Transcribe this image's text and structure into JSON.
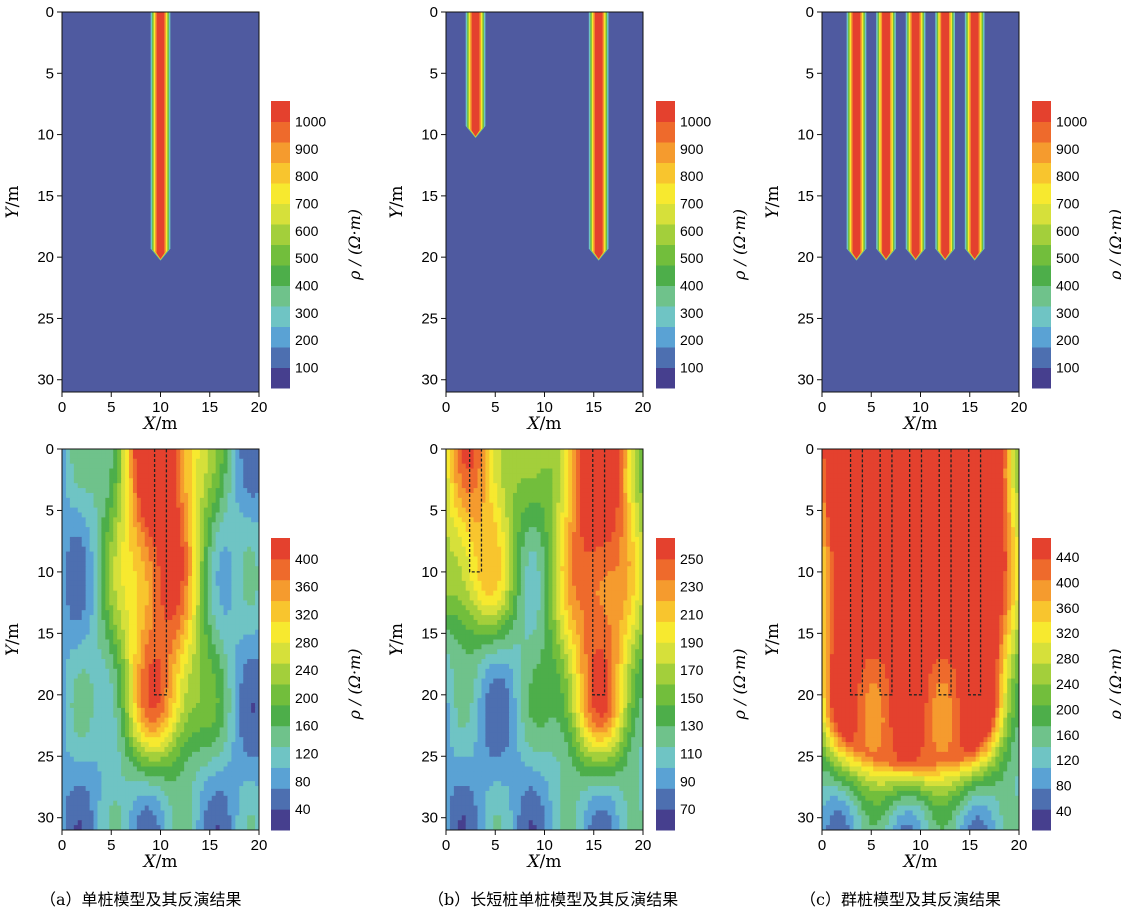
{
  "chart_data": [
    {
      "id": "a-model",
      "type": "heatmap",
      "panel": "a",
      "subtitle": "model",
      "xlabel": "X/m",
      "ylabel": "Y/m",
      "xlim": [
        0,
        20
      ],
      "ylim": [
        31,
        0
      ],
      "xticks": [
        "0",
        "5",
        "10",
        "15",
        "20"
      ],
      "yticks": [
        "0",
        "5",
        "10",
        "15",
        "20",
        "25",
        "30"
      ],
      "colorbar": {
        "label": "ρ / (Ω·m)",
        "ticks": [
          "100",
          "200",
          "300",
          "400",
          "500",
          "600",
          "700",
          "800",
          "900",
          "1000"
        ]
      },
      "background_resistivity": 50,
      "pile_resistivity": 1050,
      "piles": [
        {
          "x": 10,
          "depth": 20
        }
      ]
    },
    {
      "id": "b-model",
      "type": "heatmap",
      "panel": "b",
      "subtitle": "model",
      "xlabel": "X/m",
      "ylabel": "Y/m",
      "xlim": [
        0,
        20
      ],
      "ylim": [
        31,
        0
      ],
      "xticks": [
        "0",
        "5",
        "10",
        "15",
        "20"
      ],
      "yticks": [
        "0",
        "5",
        "10",
        "15",
        "20",
        "25",
        "30"
      ],
      "colorbar": {
        "label": "ρ / (Ω·m)",
        "ticks": [
          "100",
          "200",
          "300",
          "400",
          "500",
          "600",
          "700",
          "800",
          "900",
          "1000"
        ]
      },
      "background_resistivity": 50,
      "pile_resistivity": 1050,
      "piles": [
        {
          "x": 3,
          "depth": 10
        },
        {
          "x": 15.5,
          "depth": 20
        }
      ]
    },
    {
      "id": "c-model",
      "type": "heatmap",
      "panel": "c",
      "subtitle": "model",
      "xlabel": "X/m",
      "ylabel": "Y/m",
      "xlim": [
        0,
        20
      ],
      "ylim": [
        31,
        0
      ],
      "xticks": [
        "0",
        "5",
        "10",
        "15",
        "20"
      ],
      "yticks": [
        "0",
        "5",
        "10",
        "15",
        "20",
        "25",
        "30"
      ],
      "colorbar": {
        "label": "ρ / (Ω·m)",
        "ticks": [
          "100",
          "200",
          "300",
          "400",
          "500",
          "600",
          "700",
          "800",
          "900",
          "1000"
        ]
      },
      "background_resistivity": 50,
      "pile_resistivity": 1050,
      "piles": [
        {
          "x": 3.5,
          "depth": 20
        },
        {
          "x": 6.5,
          "depth": 20
        },
        {
          "x": 9.5,
          "depth": 20
        },
        {
          "x": 12.5,
          "depth": 20
        },
        {
          "x": 15.5,
          "depth": 20
        }
      ]
    },
    {
      "id": "a-inv",
      "type": "heatmap",
      "panel": "a",
      "subtitle": "inversion",
      "xlabel": "X/m",
      "ylabel": "Y/m",
      "xlim": [
        0,
        20
      ],
      "ylim": [
        31,
        0
      ],
      "xticks": [
        "0",
        "5",
        "10",
        "15",
        "20"
      ],
      "yticks": [
        "0",
        "5",
        "10",
        "15",
        "20",
        "25",
        "30"
      ],
      "colorbar": {
        "label": "ρ / (Ω·m)",
        "ticks": [
          "40",
          "80",
          "120",
          "160",
          "200",
          "240",
          "280",
          "320",
          "360",
          "400"
        ]
      },
      "vrange": [
        20,
        420
      ],
      "pile_outlines": [
        {
          "x": 10,
          "depth": 20
        }
      ]
    },
    {
      "id": "b-inv",
      "type": "heatmap",
      "panel": "b",
      "subtitle": "inversion",
      "xlabel": "X/m",
      "ylabel": "Y/m",
      "xlim": [
        0,
        20
      ],
      "ylim": [
        31,
        0
      ],
      "xticks": [
        "0",
        "5",
        "10",
        "15",
        "20"
      ],
      "yticks": [
        "0",
        "5",
        "10",
        "15",
        "20",
        "25",
        "30"
      ],
      "colorbar": {
        "label": "ρ / (Ω·m)",
        "ticks": [
          "70",
          "90",
          "110",
          "130",
          "150",
          "170",
          "190",
          "210",
          "230",
          "250"
        ]
      },
      "vrange": [
        60,
        260
      ],
      "pile_outlines": [
        {
          "x": 3,
          "depth": 10
        },
        {
          "x": 15.5,
          "depth": 20
        }
      ]
    },
    {
      "id": "c-inv",
      "type": "heatmap",
      "panel": "c",
      "subtitle": "inversion",
      "xlabel": "X/m",
      "ylabel": "Y/m",
      "xlim": [
        0,
        20
      ],
      "ylim": [
        31,
        0
      ],
      "xticks": [
        "0",
        "5",
        "10",
        "15",
        "20"
      ],
      "yticks": [
        "0",
        "5",
        "10",
        "15",
        "20",
        "25",
        "30"
      ],
      "colorbar": {
        "label": "ρ / (Ω·m)",
        "ticks": [
          "40",
          "80",
          "120",
          "160",
          "200",
          "240",
          "280",
          "320",
          "360",
          "400",
          "440"
        ]
      },
      "vrange": [
        20,
        480
      ],
      "pile_outlines": [
        {
          "x": 3.5,
          "depth": 20
        },
        {
          "x": 6.5,
          "depth": 20
        },
        {
          "x": 9.5,
          "depth": 20
        },
        {
          "x": 12.5,
          "depth": 20
        },
        {
          "x": 15.5,
          "depth": 20
        }
      ]
    }
  ],
  "captions": {
    "a": "（a）单桩模型及其反演结果",
    "b": "（b）长短桩单桩模型及其反演结果",
    "c": "（c）群桩模型及其反演结果"
  },
  "colors": {
    "background_blue": "#4f5aa0",
    "colormap": [
      "#463f8e",
      "#4d6fb0",
      "#5aa2d4",
      "#6fc4c4",
      "#6fc28b",
      "#4dae4a",
      "#72be3c",
      "#a3cf3b",
      "#d6e03a",
      "#f7e92f",
      "#f8c52e",
      "#f59b2e",
      "#ee6a2c",
      "#e4412e"
    ]
  }
}
